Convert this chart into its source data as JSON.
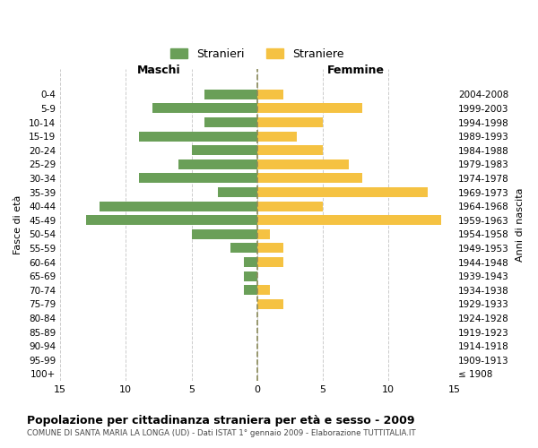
{
  "age_groups": [
    "100+",
    "95-99",
    "90-94",
    "85-89",
    "80-84",
    "75-79",
    "70-74",
    "65-69",
    "60-64",
    "55-59",
    "50-54",
    "45-49",
    "40-44",
    "35-39",
    "30-34",
    "25-29",
    "20-24",
    "15-19",
    "10-14",
    "5-9",
    "0-4"
  ],
  "birth_years": [
    "≤ 1908",
    "1909-1913",
    "1914-1918",
    "1919-1923",
    "1924-1928",
    "1929-1933",
    "1934-1938",
    "1939-1943",
    "1944-1948",
    "1949-1953",
    "1954-1958",
    "1959-1963",
    "1964-1968",
    "1969-1973",
    "1974-1978",
    "1979-1983",
    "1984-1988",
    "1989-1993",
    "1994-1998",
    "1999-2003",
    "2004-2008"
  ],
  "males": [
    0,
    0,
    0,
    0,
    0,
    0,
    1,
    1,
    1,
    2,
    5,
    13,
    12,
    3,
    9,
    6,
    5,
    9,
    4,
    8,
    4
  ],
  "females": [
    0,
    0,
    0,
    0,
    0,
    2,
    1,
    0,
    2,
    2,
    1,
    14,
    5,
    13,
    8,
    7,
    5,
    3,
    5,
    8,
    2
  ],
  "male_color": "#6a9f58",
  "female_color": "#f5c242",
  "dashed_line_color": "#8a8a5a",
  "grid_color": "#cccccc",
  "bg_color": "#ffffff",
  "title": "Popolazione per cittadinanza straniera per età e sesso - 2009",
  "subtitle": "COMUNE DI SANTA MARIA LA LONGA (UD) - Dati ISTAT 1° gennaio 2009 - Elaborazione TUTTITALIA.IT",
  "xlabel_left": "Maschi",
  "xlabel_right": "Femmine",
  "ylabel_left": "Fasce di età",
  "ylabel_right": "Anni di nascita",
  "legend_male": "Stranieri",
  "legend_female": "Straniere",
  "xlim": 15
}
